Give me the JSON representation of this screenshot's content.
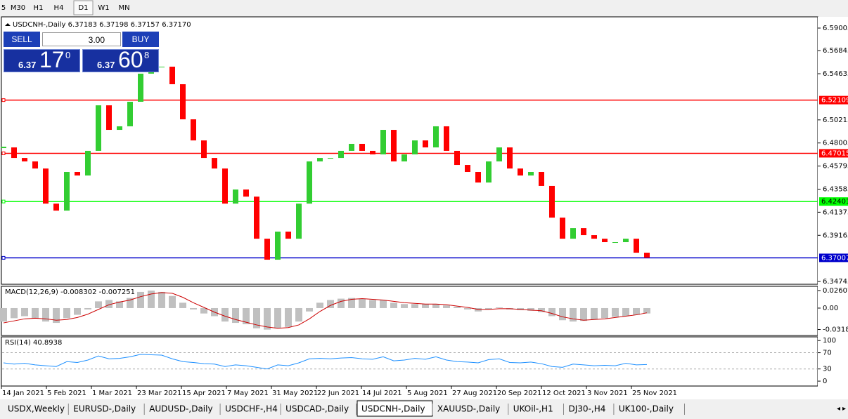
{
  "toolbar": {
    "timeframes": [
      "5",
      "M30",
      "H1",
      "H4",
      "D1",
      "W1",
      "MN"
    ],
    "active": "D1"
  },
  "trade_panel": {
    "sell": "SELL",
    "buy": "BUY",
    "lot": "3.00",
    "bid": {
      "big": "6.37",
      "pips": "17",
      "frac": "0"
    },
    "ask": {
      "big": "6.37",
      "pips": "60",
      "frac": "8"
    }
  },
  "chart": {
    "header": "USDCNH-,Daily  6.37183 6.37198 6.37157 6.37170",
    "ylim": [
      6.3448,
      6.6008
    ],
    "yticks": [
      6.59005,
      6.56845,
      6.54635,
      6.50215,
      6.48005,
      6.45795,
      6.43585,
      6.41375,
      6.39165,
      6.34745
    ],
    "levels": [
      {
        "value": 6.52109,
        "color": "#ff0000"
      },
      {
        "value": 6.47015,
        "color": "#ff0000"
      },
      {
        "value": 6.42401,
        "color": "#00ff00"
      },
      {
        "value": 6.37007,
        "color": "#0000cc"
      }
    ],
    "up_color": "#32cd32",
    "down_color": "#ff0000",
    "closes": [
      6.4758,
      6.4657,
      6.4624,
      6.4556,
      6.422,
      6.4153,
      6.4523,
      6.4489,
      6.4725,
      6.5161,
      6.4926,
      6.496,
      6.5195,
      6.5464,
      6.5531,
      6.5531,
      6.5363,
      6.5027,
      6.4825,
      6.4657,
      6.4556,
      6.422,
      6.4355,
      6.4287,
      6.3884,
      6.3683,
      6.3952,
      6.3884,
      6.422,
      6.4624,
      6.4657,
      6.4657,
      6.4725,
      6.4792,
      6.4725,
      6.4691,
      6.4926,
      6.4624,
      6.4691,
      6.4825,
      6.4758,
      6.496,
      6.4725,
      6.459,
      6.4523,
      6.4422,
      6.4624,
      6.4758,
      6.4556,
      6.4489,
      6.4523,
      6.4389,
      6.4086,
      6.3884,
      6.3985,
      6.3918,
      6.3884,
      6.3851,
      6.3851,
      6.3884,
      6.375,
      6.3703
    ],
    "dates": [
      "14 Jan 2021",
      "5 Feb 2021",
      "1 Mar 2021",
      "23 Mar 2021",
      "15 Apr 2021",
      "7 May 2021",
      "31 May 2021",
      "22 Jun 2021",
      "14 Jul 2021",
      "5 Aug 2021",
      "27 Aug 2021",
      "20 Sep 2021",
      "12 Oct 2021",
      "3 Nov 2021",
      "25 Nov 2021"
    ],
    "macd": {
      "label": "MACD(12,26,9) -0.008302 -0.007251",
      "ylim": [
        -0.0407,
        0.0323
      ],
      "yticks": [
        0.02607,
        {
          "value": 0,
          "label": "0.00"
        },
        -0.03187
      ],
      "hist_color": "#c0c0c0",
      "signal_color": "#cc0000",
      "histogram": [
        -0.02,
        -0.015,
        -0.012,
        -0.015,
        -0.02,
        -0.022,
        -0.015,
        -0.01,
        -0.002,
        0.01,
        0.012,
        0.01,
        0.015,
        0.024,
        0.026,
        0.024,
        0.018,
        0.008,
        -0.002,
        -0.008,
        -0.012,
        -0.02,
        -0.022,
        -0.024,
        -0.03,
        -0.032,
        -0.03,
        -0.028,
        -0.02,
        -0.005,
        0.008,
        0.012,
        0.014,
        0.015,
        0.014,
        0.012,
        0.012,
        0.008,
        0.006,
        0.006,
        0.006,
        0.006,
        0.004,
        0.002,
        -0.002,
        -0.005,
        -0.002,
        0.001,
        -0.002,
        -0.003,
        -0.004,
        -0.006,
        -0.012,
        -0.018,
        -0.02,
        -0.019,
        -0.017,
        -0.015,
        -0.013,
        -0.012,
        -0.01,
        -0.008
      ],
      "signal": [
        -0.022,
        -0.019,
        -0.016,
        -0.015,
        -0.016,
        -0.018,
        -0.017,
        -0.014,
        -0.009,
        -0.002,
        0.005,
        0.009,
        0.012,
        0.017,
        0.021,
        0.023,
        0.022,
        0.016,
        0.008,
        0.001,
        -0.006,
        -0.012,
        -0.017,
        -0.021,
        -0.025,
        -0.028,
        -0.03,
        -0.029,
        -0.025,
        -0.016,
        -0.005,
        0.004,
        0.01,
        0.013,
        0.014,
        0.013,
        0.012,
        0.01,
        0.008,
        0.007,
        0.006,
        0.006,
        0.005,
        0.003,
        0.001,
        -0.002,
        -0.002,
        -0.001,
        -0.001,
        -0.002,
        -0.003,
        -0.004,
        -0.008,
        -0.013,
        -0.016,
        -0.018,
        -0.017,
        -0.016,
        -0.014,
        -0.012,
        -0.01,
        -0.007
      ]
    },
    "rsi": {
      "label": "RSI(14) 40.8938",
      "ylim": [
        -12,
        109
      ],
      "yticks": [
        100,
        70,
        30,
        0
      ],
      "levels": [
        70,
        30
      ],
      "color": "#1e90ff",
      "values": [
        45,
        42,
        44,
        40,
        38,
        36,
        48,
        46,
        52,
        62,
        55,
        56,
        60,
        66,
        65,
        64,
        55,
        48,
        46,
        43,
        42,
        36,
        40,
        38,
        34,
        30,
        40,
        38,
        45,
        55,
        56,
        55,
        57,
        58,
        55,
        54,
        60,
        50,
        52,
        56,
        54,
        60,
        52,
        48,
        47,
        45,
        53,
        55,
        46,
        45,
        47,
        43,
        36,
        34,
        42,
        40,
        38,
        39,
        38,
        44,
        40,
        41
      ]
    }
  },
  "tabs": [
    "USDX,Weekly",
    "EURUSD-,Daily",
    "AUDUSD-,Daily",
    "USDCHF-,H4",
    "USDCAD-,Daily",
    "USDCNH-,Daily",
    "XAUUSD-,Daily",
    "UKOil-,H1",
    "DJ30-,H4",
    "UK100-,Daily"
  ],
  "active_tab": "USDCNH-,Daily"
}
